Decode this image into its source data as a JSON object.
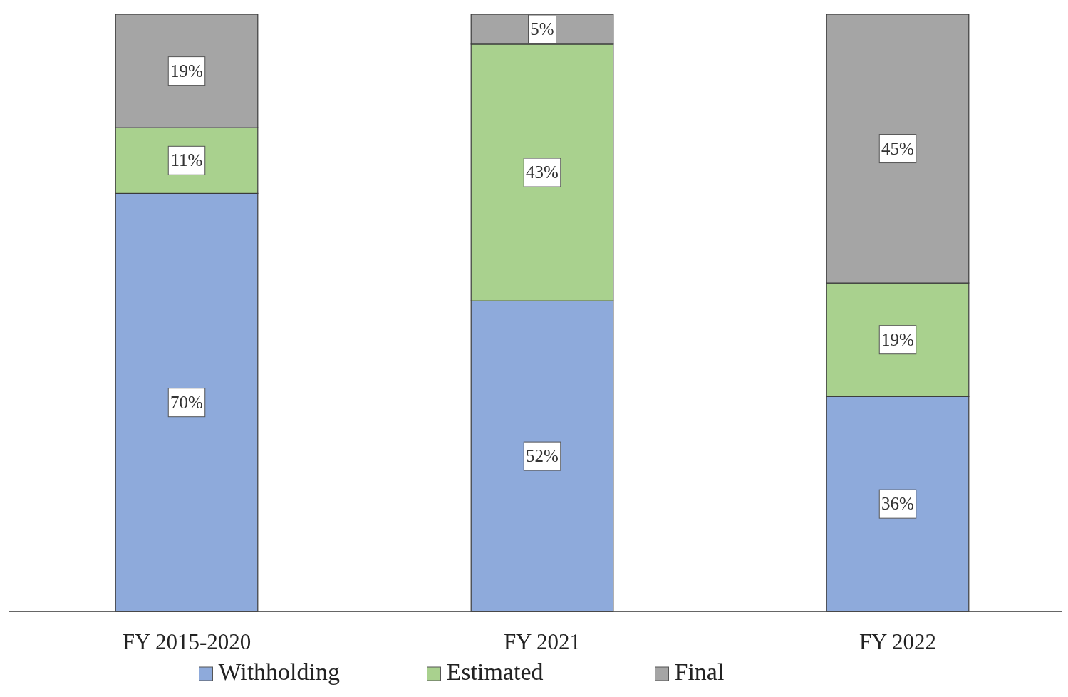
{
  "chart_data": {
    "type": "bar",
    "stacked": true,
    "categories": [
      "FY 2015-2020",
      "FY 2021",
      "FY 2022"
    ],
    "series": [
      {
        "name": "Withholding",
        "color": "#8eaadb",
        "values": [
          70,
          52,
          36
        ],
        "value_labels": [
          "70%",
          "52%",
          "36%"
        ]
      },
      {
        "name": "Estimated",
        "color": "#a9d18e",
        "values": [
          11,
          43,
          19
        ],
        "value_labels": [
          "11%",
          "43%",
          "19%"
        ]
      },
      {
        "name": "Final",
        "color": "#a5a5a5",
        "values": [
          19,
          5,
          45
        ],
        "value_labels": [
          "19%",
          "5%",
          "45%"
        ]
      }
    ],
    "ylim": [
      0,
      100
    ],
    "tick_labels": "x",
    "legend": "bottom"
  }
}
